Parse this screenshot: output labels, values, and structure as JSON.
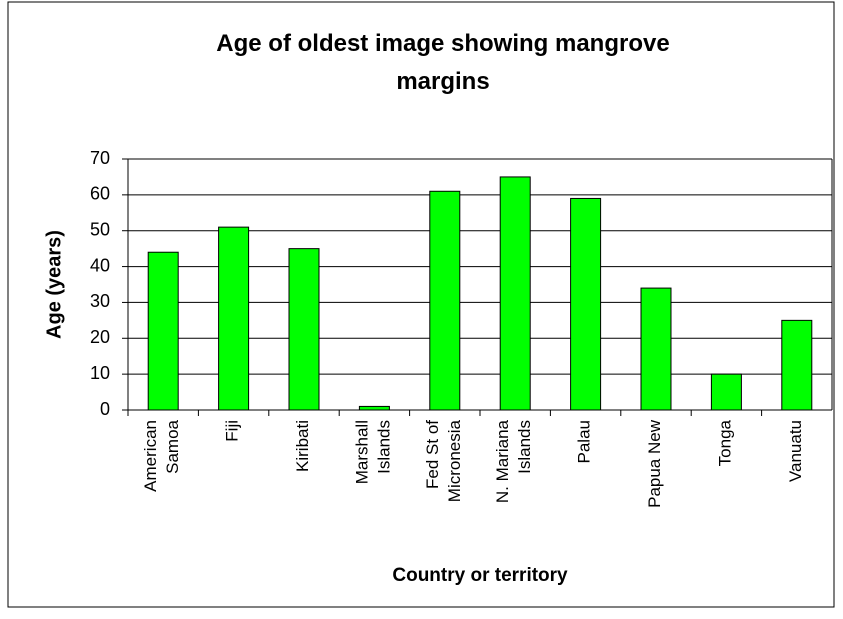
{
  "chart_data": {
    "type": "bar",
    "title": "Age of oldest image showing mangrove margins",
    "y_label": "Age (years)",
    "x_label": "Country or territory",
    "categories": [
      "American Samoa",
      "Fiji",
      "Kiribati",
      "Marshall Islands",
      "Fed St of Micronesia",
      "N. Mariana Islands",
      "Palau",
      "Papua New",
      "Tonga",
      "Vanuatu"
    ],
    "values": [
      44,
      51,
      45,
      1,
      61,
      65,
      59,
      34,
      10,
      25
    ],
    "color": "#00ff00",
    "ylim": [
      0,
      70
    ],
    "yticks": [
      0,
      10,
      20,
      30,
      40,
      50,
      60,
      70
    ],
    "grid": true
  }
}
